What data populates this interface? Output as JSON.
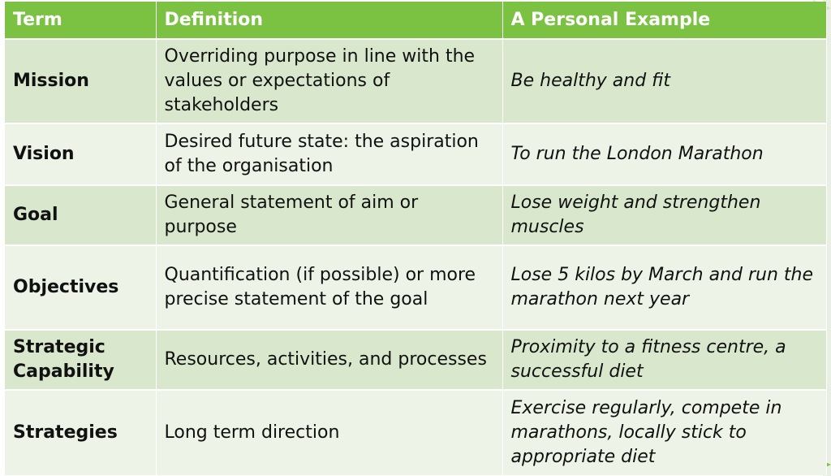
{
  "table": {
    "headers": [
      "Term",
      "Definition",
      "A Personal Example"
    ],
    "rows": [
      {
        "term": "Mission",
        "definition": "Overriding purpose in line with the values or expectations of stakeholders",
        "example": "Be healthy and fit"
      },
      {
        "term": "Vision",
        "definition": "Desired future state: the aspiration of the organisation",
        "example": "To run the London Marathon"
      },
      {
        "term": "Goal",
        "definition": "General statement of aim or purpose",
        "example": "Lose weight and strengthen muscles"
      },
      {
        "term": "Objectives",
        "definition": "Quantification (if possible) or more precise statement of the goal",
        "example": "Lose 5 kilos by March and run the marathon next year"
      },
      {
        "term": "Strategic Capability",
        "definition": "Resources, activities, and processes",
        "example": "Proximity to a fitness centre, a successful diet"
      },
      {
        "term": "Strategies",
        "definition": "Long term direction",
        "example": "Exercise regularly, compete in marathons, locally stick to appropriate diet"
      }
    ]
  },
  "colors": {
    "header_bg": "#7cc242",
    "row_dark": "#d9e8cd",
    "row_light": "#edf3e7"
  }
}
